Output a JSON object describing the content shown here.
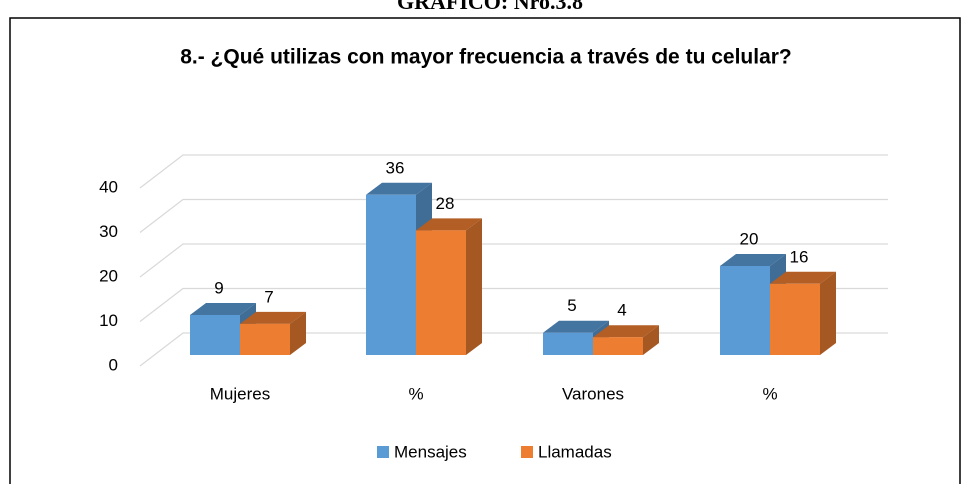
{
  "header": "GRÁFICO: Nro.3.8",
  "chart_data": {
    "type": "bar3d",
    "title": "8.- ¿Qué utilizas con mayor frecuencia a través de tu celular?",
    "categories": [
      "Mujeres",
      "%",
      "Varones",
      "%"
    ],
    "series": [
      {
        "name": "Mensajes",
        "color": "#5b9bd5",
        "values": [
          9,
          36,
          5,
          20
        ]
      },
      {
        "name": "Llamadas",
        "color": "#ed7d31",
        "values": [
          7,
          28,
          4,
          16
        ]
      }
    ],
    "ylim": [
      0,
      40
    ],
    "yticks": [
      0,
      10,
      20,
      30,
      40
    ],
    "grid": true,
    "legend": "bottom"
  }
}
